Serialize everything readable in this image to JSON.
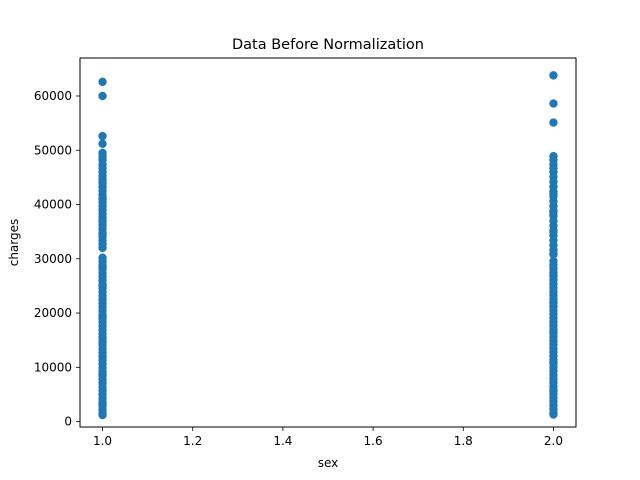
{
  "chart_data": {
    "type": "scatter",
    "title": "Data Before Normalization",
    "xlabel": "sex",
    "ylabel": "charges",
    "xlim": [
      0.95,
      2.05
    ],
    "ylim": [
      -1000,
      67000
    ],
    "xticks": [
      1.0,
      1.2,
      1.4,
      1.6,
      1.8,
      2.0
    ],
    "xtick_labels": [
      "1.0",
      "1.2",
      "1.4",
      "1.6",
      "1.8",
      "2.0"
    ],
    "yticks": [
      0,
      10000,
      20000,
      30000,
      40000,
      50000,
      60000
    ],
    "ytick_labels": [
      "0",
      "10000",
      "20000",
      "30000",
      "40000",
      "50000",
      "60000"
    ],
    "grid": false,
    "marker_color": "#1f77b4",
    "series": [
      {
        "x": [
          1,
          1,
          1,
          1,
          1,
          1,
          1,
          1,
          1,
          1,
          1,
          1,
          1,
          1,
          1,
          1,
          1,
          1,
          1,
          1,
          1,
          1,
          1,
          1,
          1,
          1,
          1,
          1,
          1,
          1,
          1,
          1,
          1,
          1,
          1,
          1,
          1,
          1,
          1,
          1,
          1,
          1,
          1,
          1,
          1,
          1,
          1,
          1,
          1,
          1,
          1,
          1,
          1,
          1,
          1,
          1,
          1,
          1,
          1,
          1,
          1,
          1,
          1,
          1,
          1,
          1,
          1,
          1,
          1,
          1,
          1,
          1,
          1,
          1,
          1,
          1,
          1,
          1,
          1,
          1,
          1,
          1,
          1
        ],
        "y": [
          62600,
          60000,
          52600,
          51200,
          49500,
          48900,
          48200,
          47400,
          46700,
          46000,
          45300,
          44600,
          43900,
          43200,
          42500,
          41800,
          41100,
          40400,
          39700,
          39000,
          38300,
          37600,
          36900,
          36200,
          35500,
          34800,
          34100,
          33400,
          32700,
          32000,
          30200,
          29500,
          28800,
          28100,
          27400,
          26700,
          26000,
          25300,
          24600,
          23900,
          23200,
          22500,
          21800,
          21100,
          20400,
          19700,
          19000,
          18300,
          17600,
          16900,
          16200,
          15500,
          14800,
          14100,
          13400,
          12700,
          12000,
          11300,
          10600,
          9900,
          9200,
          8500,
          7800,
          7100,
          6400,
          5700,
          5000,
          4300,
          3600,
          2900,
          2200,
          1500,
          1200,
          44000,
          41000,
          37000,
          34500,
          28500,
          25000,
          19500,
          14500,
          8700,
          3200
        ]
      },
      {
        "x": [
          2,
          2,
          2,
          2,
          2,
          2,
          2,
          2,
          2,
          2,
          2,
          2,
          2,
          2,
          2,
          2,
          2,
          2,
          2,
          2,
          2,
          2,
          2,
          2,
          2,
          2,
          2,
          2,
          2,
          2,
          2,
          2,
          2,
          2,
          2,
          2,
          2,
          2,
          2,
          2,
          2,
          2,
          2,
          2,
          2,
          2,
          2,
          2,
          2,
          2,
          2,
          2,
          2,
          2,
          2,
          2,
          2,
          2,
          2,
          2,
          2,
          2,
          2,
          2,
          2,
          2,
          2,
          2,
          2,
          2,
          2,
          2,
          2,
          2,
          2,
          2
        ],
        "y": [
          63800,
          58600,
          55100,
          48900,
          48200,
          47400,
          46700,
          46000,
          45100,
          44200,
          43300,
          42400,
          41500,
          40600,
          39700,
          38800,
          37900,
          37000,
          36100,
          35200,
          34300,
          33400,
          32500,
          31600,
          30800,
          29600,
          28900,
          28200,
          27500,
          26800,
          26100,
          25400,
          24700,
          24000,
          23300,
          22600,
          21900,
          21200,
          20500,
          19800,
          19100,
          18400,
          17700,
          17000,
          16300,
          15600,
          14900,
          14200,
          13500,
          12800,
          12100,
          11400,
          10700,
          10000,
          9300,
          8600,
          7900,
          7200,
          6500,
          5800,
          5100,
          4400,
          3700,
          3000,
          2300,
          1600,
          1300,
          42000,
          38500,
          35000,
          31000,
          27000,
          22000,
          16500,
          11000,
          5500
        ]
      }
    ]
  }
}
